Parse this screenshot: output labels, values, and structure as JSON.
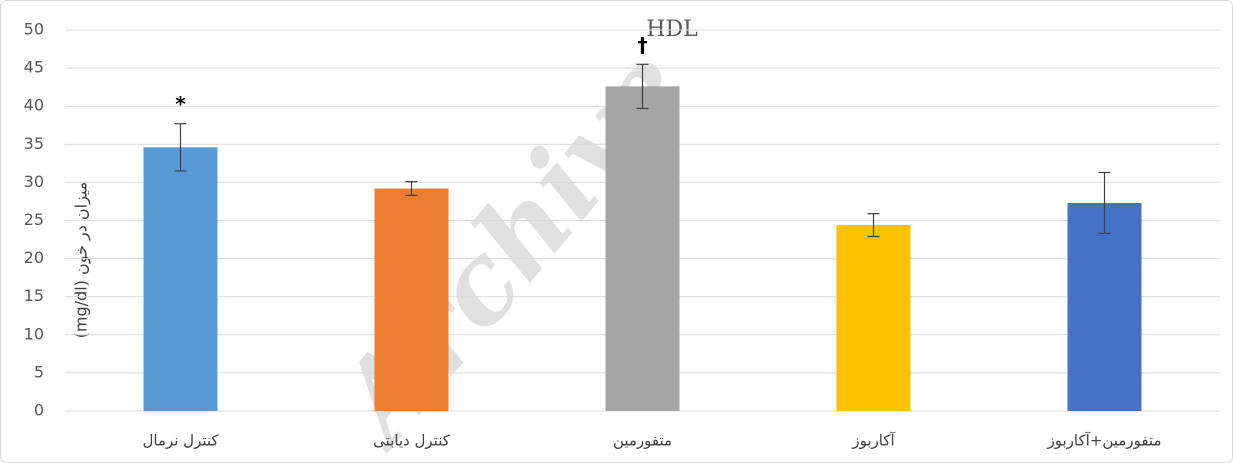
{
  "chart_data": {
    "type": "bar",
    "title": "HDL",
    "y_label": "میزان در خون (mg/dl)",
    "watermark": "Archive",
    "categories": [
      "کنترل نرمال",
      "کنترل دیابتی",
      "متفورمین",
      "آکاربوز",
      "متفورمین+آکاربوز"
    ],
    "values": [
      34.6,
      29.2,
      42.6,
      24.4,
      27.3
    ],
    "errors": [
      3.1,
      0.9,
      2.9,
      1.5,
      4.0
    ],
    "annotations": [
      "*",
      null,
      "†",
      null,
      null
    ],
    "colors": [
      "#5b9bd5",
      "#ed7d31",
      "#a5a5a5",
      "#ffc000",
      "#4472c4"
    ],
    "ylim": [
      0,
      50
    ],
    "yticks": [
      0,
      5,
      10,
      15,
      20,
      25,
      30,
      35,
      40,
      45,
      50
    ],
    "grid": true
  }
}
